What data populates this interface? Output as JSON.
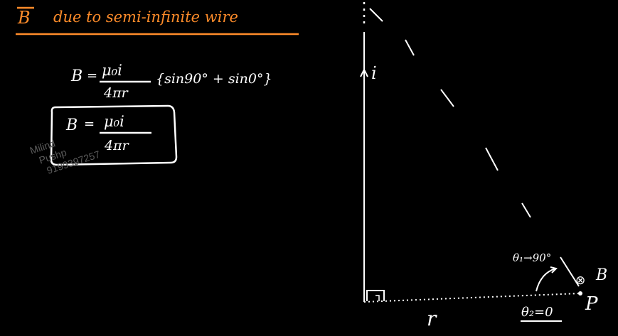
{
  "title": {
    "vector_symbol": "B",
    "text": "due to semi-infinite wire",
    "color": "#ff8c2a"
  },
  "formula_general": {
    "lhs": "B",
    "numerator": "μ₀i",
    "denominator": "4πr",
    "bracket_terms": "{sin90° + sin0°}"
  },
  "formula_result": {
    "lhs": "B",
    "numerator": "μ₀i",
    "denominator": "4πr"
  },
  "watermark": {
    "lines": [
      "Milind",
      "Pushp",
      "9199397257"
    ]
  },
  "diagram": {
    "current_label": "i",
    "distance_label": "r",
    "point_label": "P",
    "field_symbol": "⊗",
    "field_label": "B",
    "theta1_label": "θ₁→90°",
    "theta2_label": "θ₂=0"
  },
  "colors": {
    "background": "#000000",
    "ink": "#ffffff",
    "accent": "#ff8c2a"
  }
}
